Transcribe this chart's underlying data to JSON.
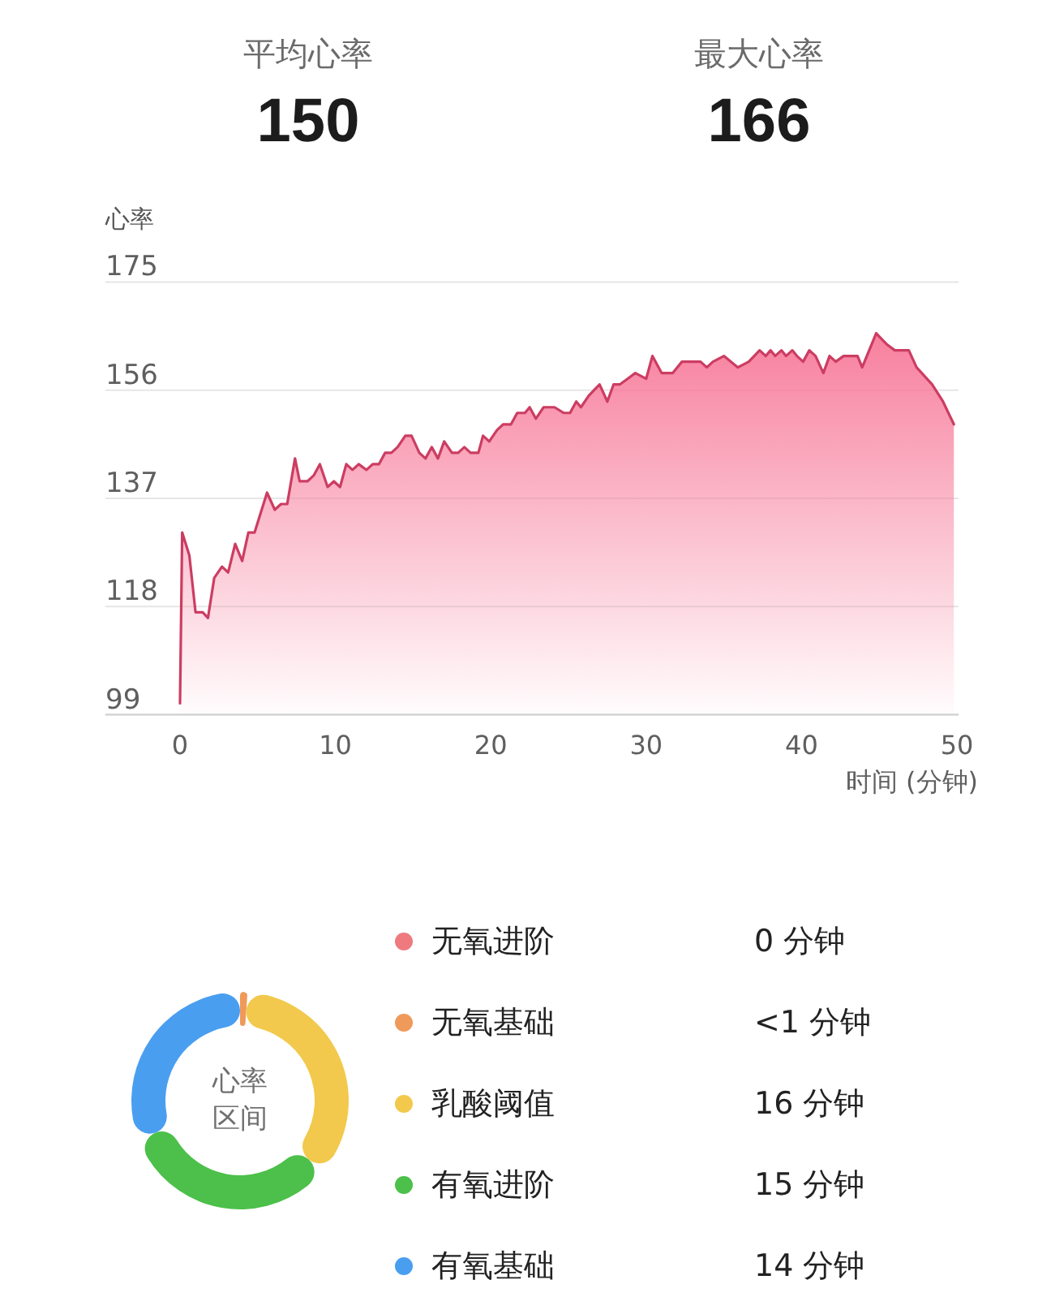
{
  "chart_data": [
    {
      "type": "other",
      "categories": [
        "平均心率",
        "最大心率"
      ],
      "values": [
        150,
        166
      ],
      "data_labels": true
    },
    {
      "type": "area",
      "ylabel": "心率",
      "xlabel": "时间 (分钟)",
      "color": "#cc3d62",
      "x": [
        0,
        0.14,
        0.6,
        1.0,
        1.46,
        1.8,
        2.2,
        2.7,
        3.1,
        3.55,
        4.0,
        4.4,
        4.8,
        5.6,
        6.1,
        6.5,
        6.9,
        7.4,
        7.7,
        8.2,
        8.6,
        9.0,
        9.5,
        9.9,
        10.3,
        10.7,
        11.1,
        11.5,
        12.0,
        12.4,
        12.8,
        13.2,
        13.6,
        14.0,
        14.5,
        14.9,
        15.4,
        15.8,
        16.2,
        16.6,
        17.0,
        17.5,
        17.9,
        18.3,
        18.7,
        19.2,
        19.5,
        19.9,
        20.4,
        20.8,
        21.3,
        21.7,
        22.2,
        22.5,
        22.9,
        23.4,
        24.1,
        24.7,
        25.1,
        25.5,
        25.8,
        26.3,
        27.0,
        27.5,
        27.9,
        28.3,
        28.8,
        29.3,
        30.0,
        30.4,
        31.0,
        31.7,
        32.3,
        33.0,
        33.5,
        33.9,
        34.3,
        35.0,
        35.9,
        36.6,
        37.3,
        37.7,
        38.0,
        38.3,
        38.7,
        39.0,
        39.4,
        39.7,
        40.1,
        40.5,
        40.9,
        41.4,
        41.8,
        42.2,
        42.7,
        43.6,
        43.9,
        44.8,
        45.5,
        46.0,
        46.9,
        47.4,
        48.4,
        49.1,
        49.8
      ],
      "values": [
        101,
        131,
        127,
        117,
        117,
        116,
        123,
        125,
        124,
        129,
        126,
        131,
        131,
        138,
        135,
        136,
        136,
        144,
        140,
        140,
        141,
        143,
        139,
        140,
        139,
        143,
        142,
        143,
        142,
        143,
        143,
        145,
        145,
        146,
        148,
        148,
        145,
        144,
        146,
        144,
        147,
        145,
        145,
        146,
        145,
        145,
        148,
        147,
        149,
        150,
        150,
        152,
        152,
        153,
        151,
        153,
        153,
        152,
        152,
        154,
        153,
        155,
        157,
        154,
        157,
        157,
        158,
        159,
        158,
        162,
        159,
        159,
        161,
        161,
        161,
        160,
        161,
        162,
        160,
        161,
        163,
        162,
        163,
        162,
        163,
        162,
        163,
        162,
        161,
        163,
        162,
        159,
        162,
        161,
        162,
        162,
        160,
        166,
        164,
        163,
        163,
        160,
        157,
        154,
        150
      ],
      "xlim": [
        -4.8,
        50.1
      ],
      "ylim": [
        99,
        175
      ],
      "xticks": [
        0,
        10,
        20,
        30,
        40,
        50
      ],
      "yticks": [
        99,
        118,
        137,
        156,
        175
      ],
      "grid": "y"
    },
    {
      "type": "donut",
      "title": "心率区间",
      "categories": [
        "无氧进阶",
        "无氧基础",
        "乳酸阈值",
        "有氧进阶",
        "有氧基础"
      ],
      "values": [
        0,
        0.5,
        16,
        15,
        14
      ],
      "colors": [
        "#ee7a7f",
        "#ef9a5a",
        "#f2c94c",
        "#4cc04a",
        "#4a9ef0"
      ],
      "value_labels": [
        "0 分钟",
        "<1 分钟",
        "16 分钟",
        "15 分钟",
        "14 分钟"
      ],
      "legend": "right"
    }
  ]
}
